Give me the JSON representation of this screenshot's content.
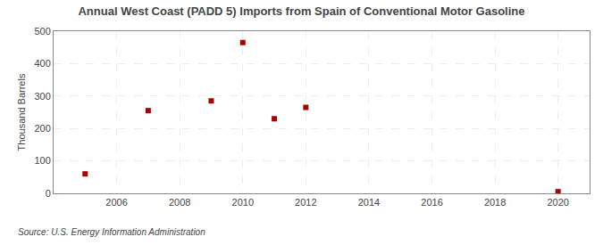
{
  "chart_data": {
    "type": "scatter",
    "title": "Annual West Coast (PADD 5) Imports from Spain of Conventional Motor Gasoline",
    "ylabel": "Thousand Barrels",
    "annotations": [
      "Source: U.S. Energy Information Administration"
    ],
    "x": [
      2005,
      2007,
      2009,
      2010,
      2011,
      2012,
      2020
    ],
    "values": [
      60,
      255,
      285,
      465,
      230,
      265,
      5
    ],
    "xlim": [
      2004.0,
      2021.0
    ],
    "xticks": [
      2006,
      2008,
      2010,
      2012,
      2014,
      2016,
      2018,
      2020
    ],
    "ylim": [
      0,
      500
    ],
    "yticks": [
      0,
      100,
      200,
      300,
      400,
      500
    ],
    "color": "#aa0000",
    "marker": "square",
    "grid": true
  }
}
